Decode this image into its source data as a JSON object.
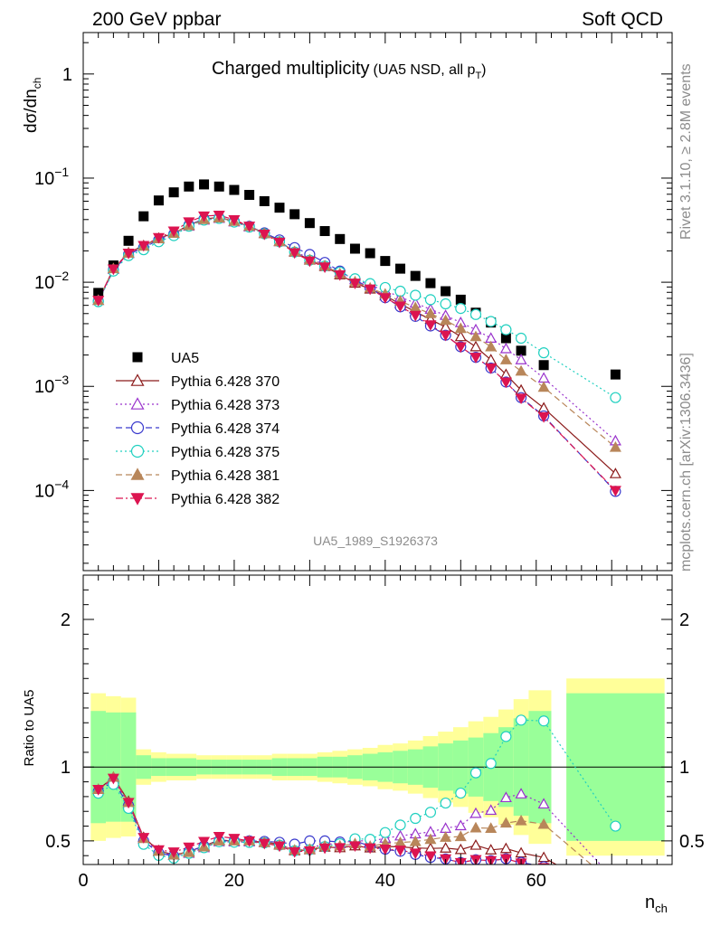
{
  "header": {
    "left": "200 GeV ppbar",
    "right": "Soft QCD",
    "plot_title": "Charged multiplicity",
    "plot_subtitle": "(UA5 NSD, all p",
    "plot_subtitle_sub": "T",
    "plot_subtitle_end": ")",
    "analysis_id": "UA5_1989_S1926373",
    "side_top": "Rivet 3.1.10, ≥ 2.8M events",
    "side_bottom": "mcplots.cern.ch [arXiv:1306.3436]"
  },
  "chart_data": {
    "type": "scatter",
    "x_axis": {
      "label_main": "n",
      "label_sub": "ch",
      "range": [
        0,
        78
      ],
      "ticks": [
        "0",
        "20",
        "40",
        "60"
      ]
    },
    "main_panel": {
      "y_axis": {
        "label": "dσ/dn",
        "label_sub": "ch",
        "scale": "log",
        "range": [
          1.7e-05,
          2.5
        ],
        "ticks": [
          {
            "value": 1,
            "label": "1"
          },
          {
            "value": 0.1,
            "label": "10",
            "exp": "−1"
          },
          {
            "value": 0.01,
            "label": "10",
            "exp": "−2"
          },
          {
            "value": 0.001,
            "label": "10",
            "exp": "−3"
          },
          {
            "value": 0.0001,
            "label": "10",
            "exp": "−4"
          }
        ]
      },
      "x": [
        2,
        4,
        6,
        8,
        10,
        12,
        14,
        16,
        18,
        20,
        22,
        24,
        26,
        28,
        30,
        32,
        34,
        36,
        38,
        40,
        42,
        44,
        46,
        48,
        50,
        52,
        54,
        56,
        58,
        61,
        70.5
      ],
      "data": {
        "name": "UA5",
        "values": [
          0.0079,
          0.0145,
          0.025,
          0.043,
          0.061,
          0.073,
          0.083,
          0.087,
          0.083,
          0.077,
          0.069,
          0.06,
          0.052,
          0.045,
          0.037,
          0.031,
          0.026,
          0.021,
          0.019,
          0.016,
          0.0135,
          0.0115,
          0.0098,
          0.0082,
          0.0068,
          0.0051,
          0.0041,
          0.0029,
          0.0022,
          0.0016,
          0.0013
        ]
      },
      "series": [
        {
          "name": "Pythia 6.428 370",
          "color": "#8b1a1a",
          "marker": "triangle-up-open",
          "line": "solid",
          "values": [
            0.0067,
            0.0135,
            0.0192,
            0.0225,
            0.0265,
            0.0295,
            0.0355,
            0.0405,
            0.042,
            0.0385,
            0.0345,
            0.0295,
            0.0248,
            0.0195,
            0.0163,
            0.0142,
            0.0118,
            0.0098,
            0.0086,
            0.0074,
            0.0062,
            0.0052,
            0.0044,
            0.0037,
            0.003,
            0.0024,
            0.0018,
            0.0013,
            0.00092,
            0.00062,
            0.000145
          ]
        },
        {
          "name": "Pythia 6.428 373",
          "color": "#9932cc",
          "marker": "triangle-up-open",
          "line": "dotted",
          "values": [
            0.0067,
            0.0133,
            0.0188,
            0.022,
            0.026,
            0.0293,
            0.0345,
            0.0395,
            0.041,
            0.038,
            0.034,
            0.0293,
            0.0245,
            0.0198,
            0.0168,
            0.0148,
            0.0125,
            0.0106,
            0.0094,
            0.0083,
            0.0072,
            0.0063,
            0.0055,
            0.0048,
            0.0041,
            0.0035,
            0.0029,
            0.0023,
            0.0018,
            0.0012,
            0.0003
          ]
        },
        {
          "name": "Pythia 6.428 374",
          "color": "#3a3acd",
          "marker": "circle-open",
          "line": "dashed",
          "values": [
            0.0066,
            0.0131,
            0.0185,
            0.0215,
            0.0255,
            0.029,
            0.0355,
            0.0405,
            0.0415,
            0.0385,
            0.0345,
            0.0298,
            0.0255,
            0.0215,
            0.0185,
            0.0155,
            0.0128,
            0.0105,
            0.0088,
            0.0071,
            0.0058,
            0.0047,
            0.0038,
            0.0031,
            0.0024,
            0.0019,
            0.0015,
            0.0011,
            0.00078,
            0.00052,
            9.8e-05
          ]
        },
        {
          "name": "Pythia 6.428 375",
          "color": "#20d0c0",
          "marker": "circle-open",
          "line": "dotted",
          "values": [
            0.0065,
            0.0128,
            0.018,
            0.0205,
            0.0245,
            0.028,
            0.0345,
            0.0395,
            0.041,
            0.0378,
            0.0338,
            0.0292,
            0.0245,
            0.0195,
            0.0163,
            0.0143,
            0.0125,
            0.0108,
            0.0097,
            0.0089,
            0.0082,
            0.0075,
            0.0068,
            0.0062,
            0.0056,
            0.0049,
            0.0042,
            0.0035,
            0.0029,
            0.0021,
            0.00078
          ]
        },
        {
          "name": "Pythia 6.428 381",
          "color": "#b8865a",
          "marker": "triangle-up-filled",
          "line": "dashed",
          "values": [
            0.0067,
            0.0135,
            0.019,
            0.0222,
            0.0262,
            0.0295,
            0.035,
            0.04,
            0.0415,
            0.0385,
            0.0345,
            0.0293,
            0.0245,
            0.0197,
            0.0164,
            0.0144,
            0.0121,
            0.0101,
            0.0088,
            0.0077,
            0.0066,
            0.0057,
            0.005,
            0.0043,
            0.0036,
            0.003,
            0.0024,
            0.0018,
            0.0014,
            0.00098,
            0.00026
          ]
        },
        {
          "name": "Pythia 6.428 382",
          "color": "#dc1450",
          "marker": "triangle-down-filled",
          "line": "dashdot",
          "values": [
            0.0067,
            0.0134,
            0.019,
            0.0225,
            0.0268,
            0.031,
            0.038,
            0.0432,
            0.044,
            0.0398,
            0.0345,
            0.029,
            0.0242,
            0.0192,
            0.016,
            0.014,
            0.0118,
            0.0098,
            0.0086,
            0.0071,
            0.0059,
            0.0048,
            0.0039,
            0.0031,
            0.0024,
            0.0019,
            0.0015,
            0.0011,
            0.00077,
            0.00051,
            0.0001
          ]
        }
      ]
    },
    "ratio_panel": {
      "y_axis": {
        "label": "Ratio to UA5",
        "range": [
          0.34,
          2.3
        ],
        "ticks": [
          "0.5",
          "1",
          "2"
        ],
        "tick_values": [
          0.5,
          1,
          2
        ]
      },
      "bins": [
        1,
        3,
        5,
        7,
        9,
        11,
        13,
        15,
        17,
        19,
        21,
        23,
        25,
        27,
        29,
        31,
        33,
        35,
        37,
        39,
        41,
        43,
        45,
        47,
        49,
        51,
        53,
        55,
        57,
        59,
        62,
        64,
        77
      ],
      "band_inner": [
        0.38,
        0.37,
        0.37,
        0.08,
        0.06,
        0.06,
        0.06,
        0.05,
        0.05,
        0.05,
        0.05,
        0.05,
        0.06,
        0.06,
        0.06,
        0.07,
        0.07,
        0.08,
        0.09,
        0.1,
        0.11,
        0.12,
        0.14,
        0.16,
        0.18,
        0.2,
        0.23,
        0.27,
        0.33,
        0.38,
        0,
        0.5
      ],
      "band_outer": [
        0.5,
        0.48,
        0.47,
        0.12,
        0.1,
        0.09,
        0.09,
        0.08,
        0.08,
        0.08,
        0.08,
        0.08,
        0.09,
        0.09,
        0.09,
        0.1,
        0.11,
        0.12,
        0.13,
        0.15,
        0.16,
        0.18,
        0.21,
        0.24,
        0.27,
        0.31,
        0.34,
        0.39,
        0.46,
        0.52,
        0,
        0.6
      ]
    }
  }
}
